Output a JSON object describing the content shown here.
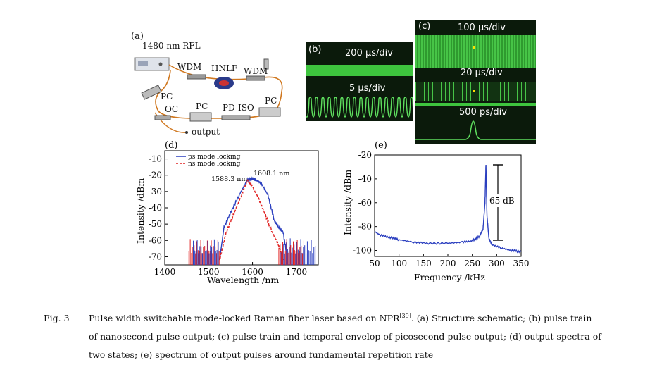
{
  "panel_a": {
    "letter": "(a)",
    "labels": {
      "rfl": "1480 nm RFL",
      "wdm_left": "WDM",
      "hnlf": "HNLF",
      "wdm_right": "WDM",
      "pc_left": "PC",
      "oc": "OC",
      "pc_mid": "PC",
      "pd_iso": "PD-ISO",
      "pc_right": "PC",
      "output": "output"
    }
  },
  "panel_b": {
    "letter": "(b)",
    "scale_top": "200 µs/div",
    "scale_bottom": "5 µs/div"
  },
  "panel_c": {
    "letter": "(c)",
    "scale_top": "100 µs/div",
    "scale_mid": "20 µs/div",
    "scale_bottom": "500 ps/div"
  },
  "chart_data": [
    {
      "id": "d",
      "letter": "(d)",
      "type": "line",
      "xlabel": "Wavelength /nm",
      "ylabel": "Intensity /dBm",
      "xlim": [
        1400,
        1750
      ],
      "ylim": [
        -75,
        -5
      ],
      "xticks": [
        "1400",
        "1500",
        "1600",
        "1700"
      ],
      "yticks": [
        "-10",
        "-20",
        "-30",
        "-40",
        "-50",
        "-60",
        "-70"
      ],
      "legend": [
        "ps mode locking",
        "ns mode locking"
      ],
      "annotations": [
        "1588.3 nm",
        "1608.1 nm"
      ],
      "series": [
        {
          "name": "ps mode locking",
          "color": "#2b3fbf",
          "x": [
            1525,
            1535,
            1550,
            1570,
            1588,
            1600,
            1608,
            1620,
            1635,
            1650,
            1660,
            1670,
            1680
          ],
          "y": [
            -72,
            -52,
            -43,
            -32,
            -23,
            -22,
            -23,
            -25,
            -32,
            -48,
            -52,
            -55,
            -72
          ]
        },
        {
          "name": "ns mode locking",
          "color": "#e02020",
          "x": [
            1525,
            1540,
            1560,
            1575,
            1588.3,
            1600,
            1615,
            1630,
            1645,
            1660,
            1670
          ],
          "y": [
            -72,
            -55,
            -42,
            -32,
            -23,
            -27,
            -35,
            -45,
            -55,
            -63,
            -72
          ]
        }
      ]
    },
    {
      "id": "e",
      "letter": "(e)",
      "type": "line",
      "xlabel": "Frequency /kHz",
      "ylabel": "Intensity /dBm",
      "xlim": [
        50,
        350
      ],
      "ylim": [
        -105,
        -20
      ],
      "xticks": [
        "50",
        "100",
        "150",
        "200",
        "250",
        "300",
        "350"
      ],
      "yticks": [
        "-20",
        "-40",
        "-60",
        "-80",
        "-100"
      ],
      "annotation": "65 dB",
      "series": [
        {
          "name": "spectrum",
          "color": "#2b3fbf",
          "x": [
            50,
            60,
            80,
            100,
            130,
            160,
            200,
            230,
            250,
            265,
            272,
            276,
            278,
            280,
            284,
            290,
            310,
            330,
            350
          ],
          "y": [
            -84,
            -87,
            -89,
            -91,
            -93,
            -94,
            -94,
            -93,
            -92,
            -88,
            -82,
            -60,
            -28,
            -70,
            -90,
            -95,
            -98,
            -100,
            -101
          ]
        }
      ]
    }
  ],
  "caption": {
    "fig_label": "Fig. 3",
    "line1": "Pulse width switchable mode-locked Raman fiber laser based on NPR",
    "ref": "[39]",
    "line1_rest": ". (a) Structure schematic; (b) pulse train",
    "line2": "of nanosecond pulse output; (c) pulse train and temporal envelop of picosecond pulse output; (d) output spectra of",
    "line3": "two states; (e) spectrum of output pulses around fundamental repetition rate"
  }
}
